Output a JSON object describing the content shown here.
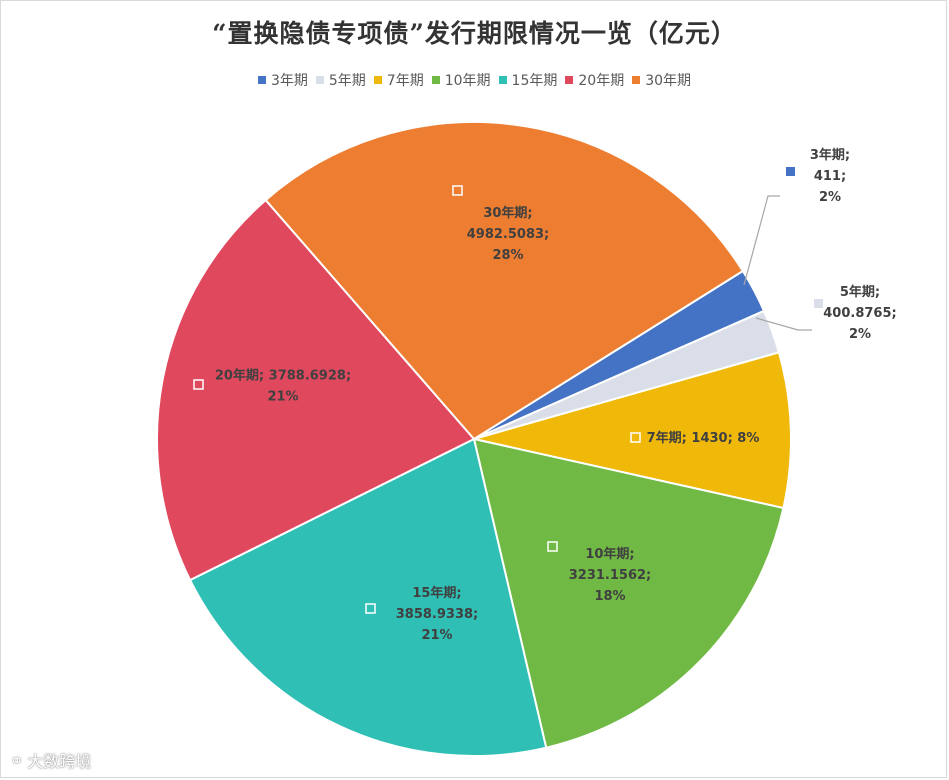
{
  "chart_data": {
    "type": "pie",
    "title": "“置换隐债专项债”发行期限情况一览（亿元）",
    "categories": [
      "3年期",
      "5年期",
      "7年期",
      "10年期",
      "15年期",
      "20年期",
      "30年期"
    ],
    "values": [
      411,
      400.8765,
      1430,
      3231.1562,
      3858.9338,
      3788.6928,
      4982.5083
    ],
    "value_labels": [
      "411",
      "400.8765",
      "1430",
      "3231.1562",
      "3858.9338",
      "3788.6928",
      "4982.5083"
    ],
    "percent_labels": [
      "2%",
      "2%",
      "8%",
      "18%",
      "21%",
      "21%",
      "28%"
    ],
    "colors": [
      "#4472c4",
      "#d9dee8",
      "#f0b90a",
      "#70b944",
      "#2fbfb4",
      "#e0485e",
      "#ed7d31"
    ],
    "legend_position": "top"
  },
  "watermark": {
    "text": "大数跨境"
  }
}
